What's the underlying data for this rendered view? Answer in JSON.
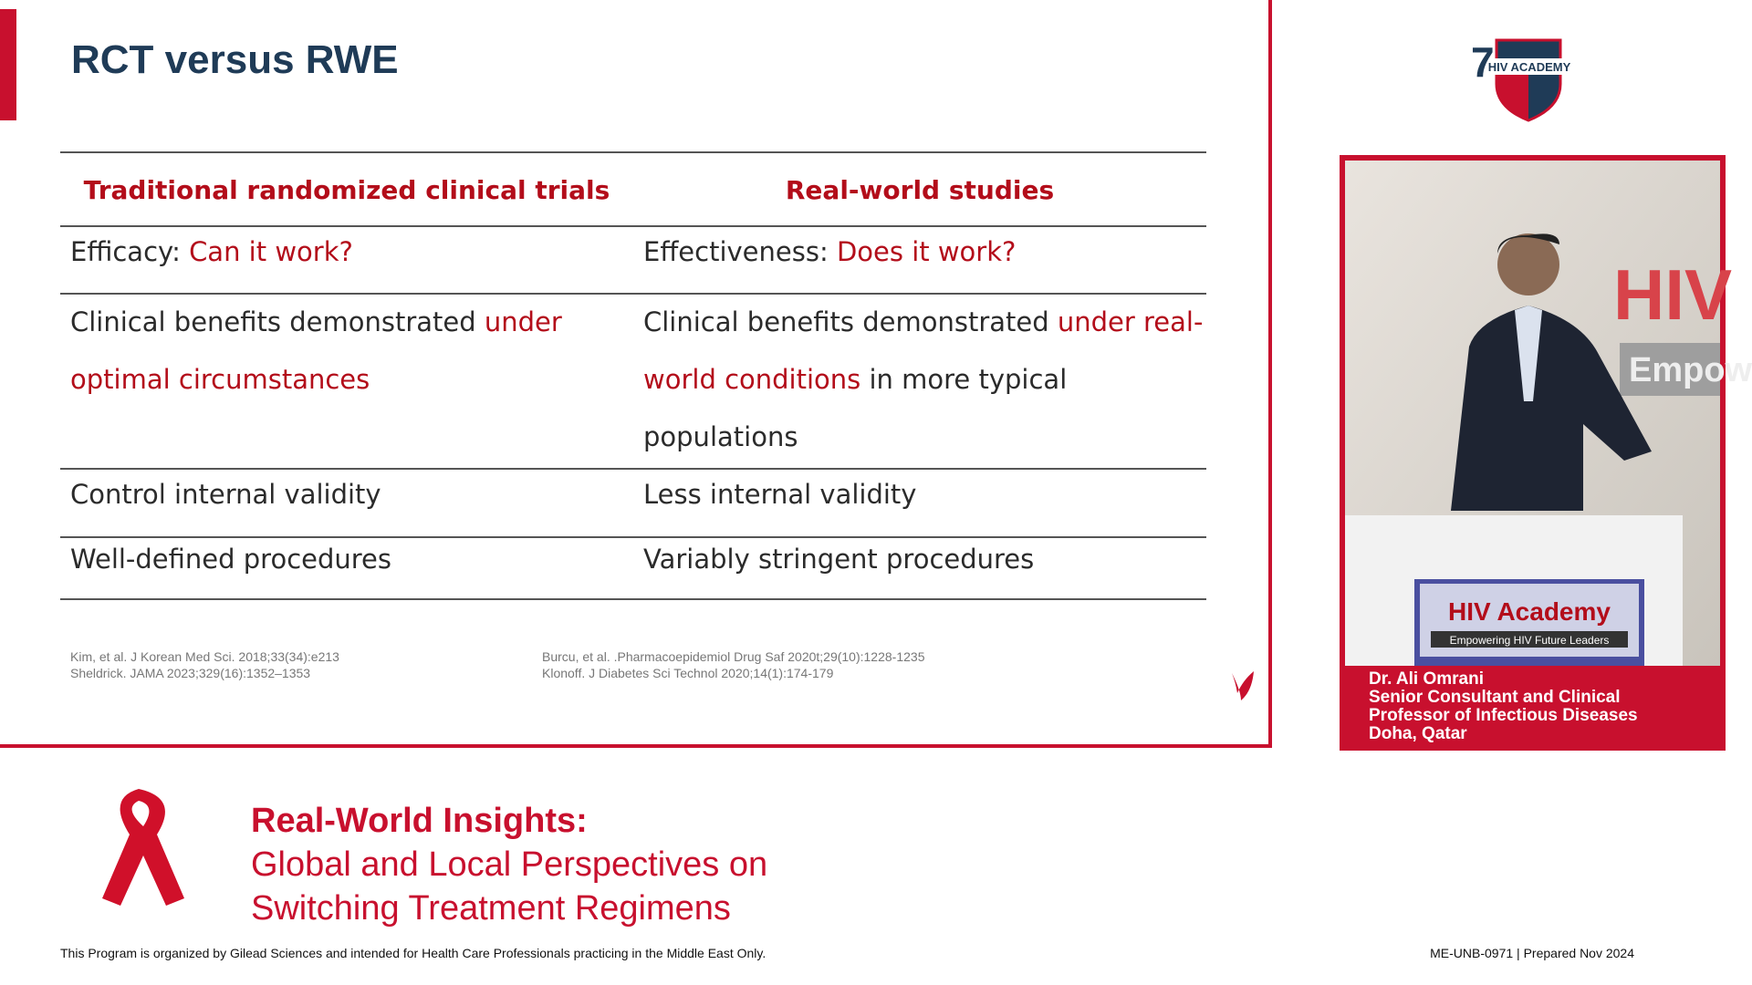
{
  "slide": {
    "title": "RCT versus RWE",
    "table": {
      "headers": [
        "Traditional randomized clinical trials",
        "Real-world studies"
      ],
      "rows": [
        {
          "cells": [
            [
              [
                {
                  "text": "Efficacy: ",
                  "color": "#2b2b2b"
                },
                {
                  "text": "Can it work?",
                  "color": "#b30d1a"
                }
              ]
            ],
            [
              [
                {
                  "text": "Effectiveness: ",
                  "color": "#2b2b2b"
                },
                {
                  "text": "Does it work?",
                  "color": "#b30d1a"
                }
              ]
            ]
          ]
        },
        {
          "cells": [
            [
              [
                {
                  "text": "Clinical benefits demonstrated ",
                  "color": "#2b2b2b"
                },
                {
                  "text": "under",
                  "color": "#b30d1a"
                }
              ],
              [
                {
                  "text": "optimal circumstances",
                  "color": "#b30d1a"
                }
              ]
            ],
            [
              [
                {
                  "text": "Clinical benefits demonstrated ",
                  "color": "#2b2b2b"
                },
                {
                  "text": "under real-",
                  "color": "#b30d1a"
                }
              ],
              [
                {
                  "text": "world conditions",
                  "color": "#b30d1a"
                },
                {
                  "text": " in more typical",
                  "color": "#2b2b2b"
                }
              ],
              [
                {
                  "text": "populations",
                  "color": "#2b2b2b"
                }
              ]
            ]
          ]
        },
        {
          "cells": [
            [
              [
                {
                  "text": "Control internal validity",
                  "color": "#2b2b2b"
                }
              ]
            ],
            [
              [
                {
                  "text": "Less internal validity",
                  "color": "#2b2b2b"
                }
              ]
            ]
          ]
        },
        {
          "cells": [
            [
              [
                {
                  "text": "Well-defined procedures",
                  "color": "#2b2b2b"
                }
              ]
            ],
            [
              [
                {
                  "text": "Variably stringent procedures",
                  "color": "#2b2b2b"
                }
              ]
            ]
          ]
        }
      ]
    },
    "references": [
      [
        "Kim, et al. J Korean Med Sci. 2018;33(34):e213",
        "Sheldrick. JAMA 2023;329(16):1352–1353"
      ],
      [
        "Burcu, et al. .Pharmacoepidemiol Drug Saf 2020t;29(10):1228-1235",
        "Klonoff. J Diabetes Sci Technol 2020;14(1):174-179"
      ]
    ]
  },
  "logo": {
    "number": "7",
    "text": "HIV ACADEMY"
  },
  "speaker": {
    "backdrop": [
      "HIV",
      "Empow"
    ],
    "podium": [
      "HIV Academy",
      "Empowering HIV Future Leaders"
    ],
    "caption": [
      "Dr. Ali Omrani",
      "Senior Consultant and Clinical",
      "Professor of Infectious Diseases",
      "Doha, Qatar"
    ]
  },
  "program": {
    "heading": "Real-World Insights:",
    "subtitle": [
      "Global and Local Perspectives on",
      "Switching Treatment Regimens"
    ]
  },
  "footer": {
    "disclaimer": "This Program is organized by Gilead Sciences and intended for Health Care Professionals practicing in the Middle East Only.",
    "code": "ME-UNB-0971 | Prepared Nov 2024"
  }
}
